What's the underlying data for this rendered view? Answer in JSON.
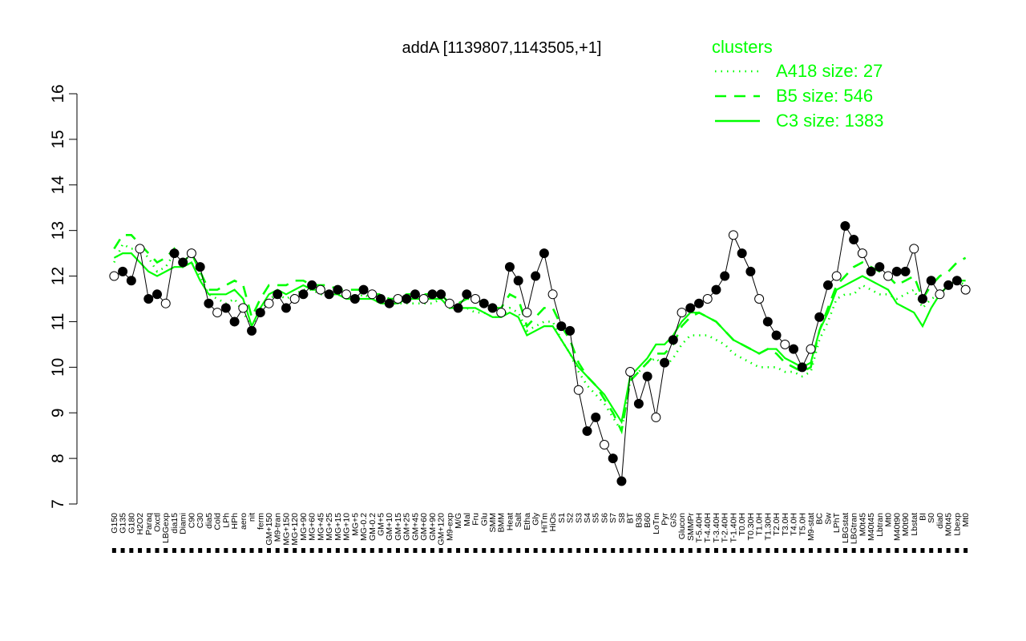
{
  "chart_data": {
    "type": "line",
    "title": "addA [1139807,1143505,+1]",
    "xlabel": "",
    "ylabel": "",
    "ylim": [
      7,
      16
    ],
    "y_ticks": [
      7,
      8,
      9,
      10,
      11,
      12,
      13,
      14,
      15,
      16
    ],
    "x_tick_labels": [
      "G150",
      "G135",
      "G180",
      "H2O2",
      "Paraq",
      "Oxctl",
      "LBGexp",
      "dia15",
      "Diami",
      "C90",
      "C30",
      "dia5",
      "Cold",
      "LPh",
      "HPh",
      "aero",
      "nit",
      "ferm",
      "GM+150",
      "M9-tran",
      "MG+150",
      "MG+120",
      "MG+90",
      "MG+60",
      "MG+45",
      "MG+25",
      "MG+15",
      "MG+10",
      "MG+5",
      "MG-0.2",
      "GM-0.2",
      "GM+5",
      "GM+10",
      "GM+15",
      "GM+25",
      "GM+45",
      "GM+60",
      "GM+90",
      "GM+120",
      "M9-exp",
      "M/G",
      "Mal",
      "Fru",
      "Glu",
      "SMM",
      "BMM",
      "Heat",
      "Salt",
      "Etha",
      "Gly",
      "HiTm",
      "HiOs",
      "S1",
      "S2",
      "S3",
      "S4",
      "S5",
      "S6",
      "S7",
      "S8",
      "BT",
      "B36",
      "B60",
      "LoTm",
      "Pyr",
      "G/S",
      "Glucon",
      "SMMPr",
      "T-5.40H",
      "T-4.40H",
      "T-3.40H",
      "T-2.40H",
      "T-1.40H",
      "T0.0H",
      "T0.30H",
      "T1.0H",
      "T1.30H",
      "T2.0H",
      "T3.0H",
      "T4.0H",
      "T5.0H",
      "M9-stat",
      "BC",
      "Sw",
      "LPhT",
      "LBGstat",
      "LBGtran",
      "M0t45",
      "M40t45",
      "Lbtran",
      "Mt0",
      "M40t90",
      "M0t90",
      "Lbstat",
      "BI",
      "S0",
      "dia0",
      "M0t45",
      "Lbexp",
      "Mt0"
    ],
    "legend_title": "clusters",
    "legend_position": "top-right",
    "series": [
      {
        "name": "A418 size: 27",
        "style": "dotted",
        "color": "#00ff00",
        "values": [
          12.3,
          12.7,
          12.6,
          12.6,
          12.4,
          12.1,
          12.2,
          12.5,
          12.2,
          12.3,
          12.0,
          11.6,
          11.5,
          11.4,
          11.5,
          11.2,
          10.9,
          11.2,
          11.5,
          11.6,
          11.5,
          11.6,
          11.7,
          11.7,
          11.6,
          11.6,
          11.6,
          11.5,
          11.5,
          11.6,
          11.5,
          11.4,
          11.4,
          11.4,
          11.4,
          11.4,
          11.4,
          11.4,
          11.5,
          11.3,
          11.3,
          11.3,
          11.2,
          11.2,
          11.1,
          11.1,
          11.3,
          11.2,
          10.8,
          10.9,
          11.0,
          11.0,
          10.6,
          10.3,
          9.9,
          9.6,
          9.4,
          9.2,
          8.9,
          8.6,
          9.7,
          9.9,
          10.1,
          10.2,
          10.0,
          10.2,
          10.5,
          10.7,
          10.7,
          10.7,
          10.6,
          10.5,
          10.3,
          10.2,
          10.1,
          10.0,
          10.0,
          10.0,
          9.9,
          9.9,
          9.8,
          9.9,
          10.6,
          11.0,
          11.5,
          11.6,
          11.6,
          11.8,
          11.7,
          11.6,
          11.6,
          11.5,
          11.6,
          11.7,
          11.3,
          11.5,
          11.6,
          11.8,
          11.9,
          11.8
        ]
      },
      {
        "name": "B5 size: 546",
        "style": "dashed",
        "color": "#00ff00",
        "values": [
          12.6,
          12.9,
          12.9,
          12.7,
          12.5,
          12.3,
          12.4,
          12.6,
          12.3,
          12.5,
          12.1,
          11.7,
          11.7,
          11.8,
          11.9,
          11.8,
          11.1,
          11.5,
          11.8,
          11.8,
          11.8,
          11.9,
          11.9,
          11.8,
          11.8,
          11.8,
          11.7,
          11.7,
          11.7,
          11.7,
          11.6,
          11.6,
          11.5,
          11.5,
          11.6,
          11.6,
          11.6,
          11.6,
          11.6,
          11.4,
          11.4,
          11.5,
          11.5,
          11.4,
          11.3,
          11.3,
          11.6,
          11.5,
          10.9,
          11.1,
          11.3,
          11.3,
          10.9,
          10.6,
          10.1,
          9.8,
          9.6,
          9.3,
          9.0,
          8.6,
          9.7,
          9.9,
          10.1,
          10.3,
          10.3,
          10.5,
          10.9,
          11.1,
          11.2,
          11.1,
          11.0,
          10.8,
          10.6,
          10.5,
          10.4,
          10.3,
          10.4,
          10.3,
          10.1,
          10.0,
          9.9,
          10.0,
          10.8,
          11.3,
          11.8,
          12.0,
          12.2,
          12.3,
          12.2,
          12.1,
          12.0,
          11.8,
          11.9,
          12.0,
          11.5,
          11.8,
          12.0,
          12.1,
          12.3,
          12.4
        ]
      },
      {
        "name": "C3 size: 1383",
        "style": "solid",
        "color": "#00ff00",
        "values": [
          12.4,
          12.5,
          12.5,
          12.3,
          12.1,
          12.0,
          12.1,
          12.2,
          12.2,
          12.3,
          11.9,
          11.6,
          11.6,
          11.6,
          11.7,
          11.5,
          10.9,
          11.3,
          11.6,
          11.7,
          11.6,
          11.7,
          11.8,
          11.7,
          11.7,
          11.6,
          11.6,
          11.5,
          11.5,
          11.5,
          11.5,
          11.4,
          11.4,
          11.4,
          11.5,
          11.5,
          11.5,
          11.5,
          11.5,
          11.3,
          11.3,
          11.3,
          11.3,
          11.2,
          11.1,
          11.1,
          11.2,
          11.1,
          10.7,
          10.8,
          10.9,
          10.9,
          10.6,
          10.3,
          10.0,
          9.8,
          9.6,
          9.4,
          9.1,
          8.8,
          9.8,
          10.0,
          10.2,
          10.5,
          10.5,
          10.7,
          11.0,
          11.2,
          11.2,
          11.1,
          11.0,
          10.8,
          10.6,
          10.5,
          10.4,
          10.3,
          10.4,
          10.4,
          10.2,
          10.1,
          10.0,
          10.1,
          10.8,
          11.2,
          11.7,
          11.8,
          11.9,
          12.0,
          11.9,
          11.8,
          11.7,
          11.4,
          11.3,
          11.2,
          10.9,
          11.3,
          11.6,
          11.8,
          11.9,
          11.9
        ]
      },
      {
        "name": "addA",
        "style": "points",
        "color": "#000000",
        "values": [
          12.0,
          12.1,
          11.9,
          12.6,
          11.5,
          11.6,
          11.4,
          12.5,
          12.3,
          12.5,
          12.2,
          11.4,
          11.2,
          11.3,
          11.0,
          11.3,
          10.8,
          11.2,
          11.4,
          11.6,
          11.3,
          11.5,
          11.6,
          11.8,
          11.7,
          11.6,
          11.7,
          11.6,
          11.5,
          11.7,
          11.6,
          11.5,
          11.4,
          11.5,
          11.5,
          11.6,
          11.5,
          11.6,
          11.6,
          11.4,
          11.3,
          11.6,
          11.5,
          11.4,
          11.3,
          11.2,
          12.2,
          11.9,
          11.2,
          12.0,
          12.5,
          11.6,
          10.9,
          10.8,
          9.5,
          8.6,
          8.9,
          8.3,
          8.0,
          7.5,
          9.9,
          9.2,
          9.8,
          8.9,
          10.1,
          10.6,
          11.2,
          11.3,
          11.4,
          11.5,
          11.7,
          12.0,
          12.9,
          12.5,
          12.1,
          11.5,
          11.0,
          10.7,
          10.5,
          10.4,
          10.0,
          10.4,
          11.1,
          11.8,
          12.0,
          13.1,
          12.8,
          12.5,
          12.1,
          12.2,
          12.0,
          12.1,
          12.1,
          12.6,
          11.5,
          11.9,
          11.6,
          11.8,
          11.9,
          11.7
        ]
      }
    ]
  }
}
